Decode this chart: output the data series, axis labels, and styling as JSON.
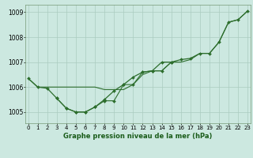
{
  "bg_color": "#cce8e0",
  "grid_color": "#aaccc0",
  "line_color": "#2d6e2d",
  "xlabel": "Graphe pression niveau de la mer (hPa)",
  "xlabel_color": "#1a5c1a",
  "ylabel_ticks": [
    1005,
    1006,
    1007,
    1008,
    1009
  ],
  "xtick_labels": [
    "0",
    "1",
    "2",
    "3",
    "4",
    "5",
    "6",
    "7",
    "8",
    "9",
    "10",
    "11",
    "12",
    "13",
    "14",
    "15",
    "16",
    "17",
    "18",
    "19",
    "20",
    "21",
    "22",
    "23"
  ],
  "xticks": [
    0,
    1,
    2,
    3,
    4,
    5,
    6,
    7,
    8,
    9,
    10,
    11,
    12,
    13,
    14,
    15,
    16,
    17,
    18,
    19,
    20,
    21,
    22,
    23
  ],
  "xlim": [
    -0.3,
    23.3
  ],
  "ylim": [
    1004.55,
    1009.3
  ],
  "line1_x": [
    0,
    1,
    2,
    3,
    4,
    5,
    6,
    7,
    8,
    9,
    10,
    11,
    12,
    13,
    14,
    15,
    16,
    17,
    18,
    19,
    20,
    21,
    22,
    23
  ],
  "line1_y": [
    1006.35,
    1006.0,
    1005.95,
    1005.55,
    1005.15,
    1005.0,
    1005.0,
    1005.2,
    1005.5,
    1005.85,
    1006.1,
    1006.4,
    1006.6,
    1006.65,
    1007.0,
    1007.0,
    1007.1,
    1007.15,
    1007.35,
    1007.35,
    1007.8,
    1008.6,
    1008.7,
    1009.05
  ],
  "line2_x": [
    0,
    1,
    2,
    3,
    4,
    5,
    6,
    7,
    8,
    9,
    10,
    11,
    12,
    13,
    14,
    15,
    16,
    17,
    18,
    19,
    20,
    21,
    22,
    23
  ],
  "line2_y": [
    1006.35,
    1006.0,
    1006.0,
    1006.0,
    1006.0,
    1006.0,
    1006.0,
    1006.0,
    1005.9,
    1005.9,
    1005.9,
    1006.1,
    1006.5,
    1006.65,
    1006.65,
    1007.0,
    1007.0,
    1007.1,
    1007.35,
    1007.35,
    1007.8,
    1008.6,
    1008.7,
    1009.05
  ],
  "line3_x": [
    3,
    4,
    5,
    6,
    7,
    8,
    9,
    10,
    11,
    12,
    13,
    14,
    15
  ],
  "line3_y": [
    1005.55,
    1005.15,
    1005.0,
    1005.0,
    1005.2,
    1005.45,
    1005.45,
    1006.1,
    1006.1,
    1006.6,
    1006.65,
    1006.65,
    1007.0
  ],
  "tick_fontsize": 5.0,
  "xlabel_fontsize": 6.0
}
